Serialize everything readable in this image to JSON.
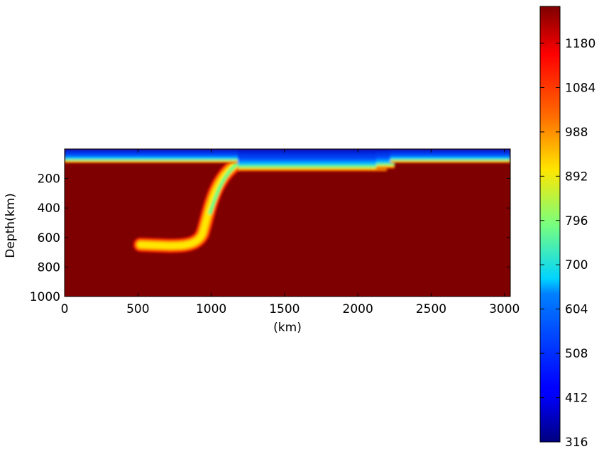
{
  "chart_data": {
    "type": "heatmap",
    "title": "",
    "xlabel": "(km)",
    "ylabel": "Depth(km)",
    "xlim": [
      0,
      3040
    ],
    "ylim": [
      1000,
      0
    ],
    "x_ticks": [
      "0",
      "500",
      "1000",
      "1500",
      "2000",
      "2500",
      "3000"
    ],
    "y_ticks": [
      "200",
      "400",
      "600",
      "800",
      "1000"
    ],
    "colormap": "jet",
    "colorbar": {
      "vmin": 316,
      "vmax": 1260,
      "ticks": [
        "316",
        "412",
        "508",
        "604",
        "700",
        "796",
        "892",
        "988",
        "1084",
        "1180"
      ]
    },
    "background_value": 1260,
    "features": [
      {
        "name": "cold surface lithosphere",
        "value_range": [
          316,
          620
        ],
        "depth_range_km": [
          0,
          60
        ]
      },
      {
        "name": "thicker cold lid",
        "x_range_km": [
          1150,
          2200
        ],
        "depth_range_km": [
          0,
          130
        ]
      },
      {
        "name": "subducting slab",
        "value_range": [
          700,
          1100
        ],
        "top_x_km": 1180,
        "bottom_depth_km": 660,
        "tip_x_km": 500
      }
    ],
    "grid": false,
    "legend": "colorbar-right"
  }
}
